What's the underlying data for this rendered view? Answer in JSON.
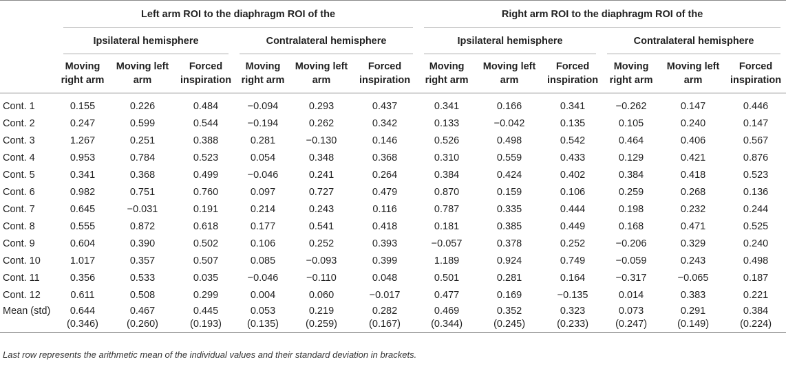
{
  "header": {
    "left_group": "Left arm ROI to the diaphragm ROI of the",
    "right_group": "Right arm ROI to the diaphragm ROI of the",
    "ipsi": "Ipsilateral hemisphere",
    "contra": "Contralateral hemisphere",
    "col_moving_right_1": "Moving",
    "col_moving_right_2": "right arm",
    "col_moving_left_1": "Moving left",
    "col_moving_left_2": "arm",
    "col_forced_1": "Forced",
    "col_forced_2": "inspiration"
  },
  "rows": [
    {
      "label": "Cont. 1",
      "vals": [
        "0.155",
        "0.226",
        "0.484",
        "−0.094",
        "0.293",
        "0.437",
        "0.341",
        "0.166",
        "0.341",
        "−0.262",
        "0.147",
        "0.446"
      ]
    },
    {
      "label": "Cont. 2",
      "vals": [
        "0.247",
        "0.599",
        "0.544",
        "−0.194",
        "0.262",
        "0.342",
        "0.133",
        "−0.042",
        "0.135",
        "0.105",
        "0.240",
        "0.147"
      ]
    },
    {
      "label": "Cont. 3",
      "vals": [
        "1.267",
        "0.251",
        "0.388",
        "0.281",
        "−0.130",
        "0.146",
        "0.526",
        "0.498",
        "0.542",
        "0.464",
        "0.406",
        "0.567"
      ]
    },
    {
      "label": "Cont. 4",
      "vals": [
        "0.953",
        "0.784",
        "0.523",
        "0.054",
        "0.348",
        "0.368",
        "0.310",
        "0.559",
        "0.433",
        "0.129",
        "0.421",
        "0.876"
      ]
    },
    {
      "label": "Cont. 5",
      "vals": [
        "0.341",
        "0.368",
        "0.499",
        "−0.046",
        "0.241",
        "0.264",
        "0.384",
        "0.424",
        "0.402",
        "0.384",
        "0.418",
        "0.523"
      ]
    },
    {
      "label": "Cont. 6",
      "vals": [
        "0.982",
        "0.751",
        "0.760",
        "0.097",
        "0.727",
        "0.479",
        "0.870",
        "0.159",
        "0.106",
        "0.259",
        "0.268",
        "0.136"
      ]
    },
    {
      "label": "Cont. 7",
      "vals": [
        "0.645",
        "−0.031",
        "0.191",
        "0.214",
        "0.243",
        "0.116",
        "0.787",
        "0.335",
        "0.444",
        "0.198",
        "0.232",
        "0.244"
      ]
    },
    {
      "label": "Cont. 8",
      "vals": [
        "0.555",
        "0.872",
        "0.618",
        "0.177",
        "0.541",
        "0.418",
        "0.181",
        "0.385",
        "0.449",
        "0.168",
        "0.471",
        "0.525"
      ]
    },
    {
      "label": "Cont. 9",
      "vals": [
        "0.604",
        "0.390",
        "0.502",
        "0.106",
        "0.252",
        "0.393",
        "−0.057",
        "0.378",
        "0.252",
        "−0.206",
        "0.329",
        "0.240"
      ]
    },
    {
      "label": "Cont. 10",
      "vals": [
        "1.017",
        "0.357",
        "0.507",
        "0.085",
        "−0.093",
        "0.399",
        "1.189",
        "0.924",
        "0.749",
        "−0.059",
        "0.243",
        "0.498"
      ]
    },
    {
      "label": "Cont. 11",
      "vals": [
        "0.356",
        "0.533",
        "0.035",
        "−0.046",
        "−0.110",
        "0.048",
        "0.501",
        "0.281",
        "0.164",
        "−0.317",
        "−0.065",
        "0.187"
      ]
    },
    {
      "label": "Cont. 12",
      "vals": [
        "0.611",
        "0.508",
        "0.299",
        "0.004",
        "0.060",
        "−0.017",
        "0.477",
        "0.169",
        "−0.135",
        "0.014",
        "0.383",
        "0.221"
      ]
    }
  ],
  "mean": {
    "label": "Mean (std)",
    "vals": [
      "0.644",
      "0.467",
      "0.445",
      "0.053",
      "0.219",
      "0.282",
      "0.469",
      "0.352",
      "0.323",
      "0.073",
      "0.291",
      "0.384"
    ],
    "std": [
      "(0.346)",
      "(0.260)",
      "(0.193)",
      "(0.135)",
      "(0.259)",
      "(0.167)",
      "(0.344)",
      "(0.245)",
      "(0.233)",
      "(0.247)",
      "(0.149)",
      "(0.224)"
    ]
  },
  "footnote": "Last row represents the arithmetic mean of the individual values and their standard deviation in brackets."
}
